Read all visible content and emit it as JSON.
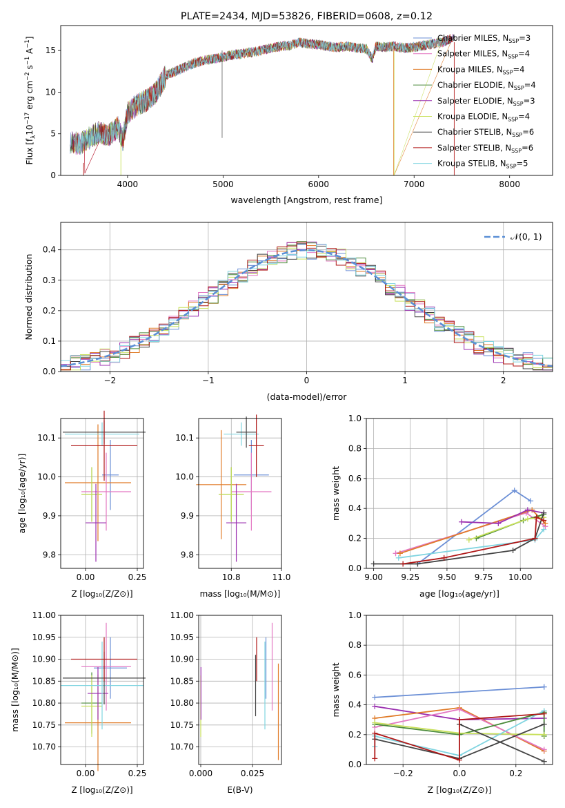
{
  "chart_data": [
    {
      "id": "spectrum",
      "type": "line",
      "title": "PLATE=2434, MJD=53826, FIBERID=0608, z=0.12",
      "xlabel": "wavelength [Angstrom, rest frame]",
      "ylabel_parts": {
        "pre": "Flux [f",
        "sub": "λ",
        "mid": "10",
        "sup1": "−17",
        "mid2": " erg cm",
        "sup2": "−2",
        "mid3": " s",
        "sup3": "−1",
        "mid4": " A",
        "sup4": "−1",
        "post": "]"
      },
      "xlim": [
        3300,
        8450
      ],
      "ylim": [
        0,
        18
      ],
      "xticks": [
        4000,
        5000,
        6000,
        7000,
        8000
      ],
      "yticks": [
        0,
        5,
        10,
        15
      ],
      "legend_position": "upper-right",
      "series": [
        {
          "label": "Chabrier MILES, N",
          "sub": "SSP",
          "suffix": "=3",
          "color": "#6b8fd6"
        },
        {
          "label": "Salpeter MILES, N",
          "sub": "SSP",
          "suffix": "=4",
          "color": "#e377c2"
        },
        {
          "label": "Kroupa MILES, N",
          "sub": "SSP",
          "suffix": "=4",
          "color": "#e07b28"
        },
        {
          "label": "Chabrier ELODIE, N",
          "sub": "SSP",
          "suffix": "=4",
          "color": "#4a8a3a"
        },
        {
          "label": "Salpeter ELODIE, N",
          "sub": "SSP",
          "suffix": "=3",
          "color": "#9b30b0"
        },
        {
          "label": "Kroupa ELODIE, N",
          "sub": "SSP",
          "suffix": "=4",
          "color": "#c8e05a"
        },
        {
          "label": "Chabrier STELIB, N",
          "sub": "SSP",
          "suffix": "=6",
          "color": "#444444"
        },
        {
          "label": "Salpeter STELIB, N",
          "sub": "SSP",
          "suffix": "=6",
          "color": "#b01818"
        },
        {
          "label": "Kroupa STELIB, N",
          "sub": "SSP",
          "suffix": "=5",
          "color": "#7fd4e0"
        }
      ],
      "envelope": [
        [
          3400,
          4.0
        ],
        [
          3500,
          3.8
        ],
        [
          3600,
          4.5
        ],
        [
          3700,
          5.2
        ],
        [
          3800,
          4.8
        ],
        [
          3900,
          5.8
        ],
        [
          3950,
          4.2
        ],
        [
          4000,
          7.5
        ],
        [
          4100,
          8.5
        ],
        [
          4200,
          9.0
        ],
        [
          4300,
          10.0
        ],
        [
          4400,
          12.0
        ],
        [
          4500,
          12.5
        ],
        [
          4600,
          13.0
        ],
        [
          4700,
          13.5
        ],
        [
          4800,
          13.8
        ],
        [
          4900,
          14.0
        ],
        [
          5000,
          14.2
        ],
        [
          5100,
          14.5
        ],
        [
          5200,
          14.6
        ],
        [
          5300,
          14.8
        ],
        [
          5400,
          15.0
        ],
        [
          5500,
          15.3
        ],
        [
          5600,
          15.5
        ],
        [
          5700,
          15.6
        ],
        [
          5800,
          16.0
        ],
        [
          5900,
          15.8
        ],
        [
          6000,
          15.7
        ],
        [
          6100,
          15.5
        ],
        [
          6200,
          15.4
        ],
        [
          6300,
          15.5
        ],
        [
          6400,
          15.3
        ],
        [
          6500,
          15.2
        ],
        [
          6563,
          14.0
        ],
        [
          6600,
          15.5
        ],
        [
          6700,
          15.4
        ],
        [
          6800,
          15.5
        ],
        [
          6900,
          15.3
        ],
        [
          7000,
          15.4
        ],
        [
          7100,
          15.6
        ],
        [
          7200,
          15.8
        ],
        [
          7300,
          16.0
        ],
        [
          7400,
          16.5
        ]
      ]
    },
    {
      "id": "residuals",
      "type": "histogram",
      "xlabel": "(data-model)/error",
      "ylabel": "Normed distribution",
      "xlim": [
        -2.5,
        2.5
      ],
      "ylim": [
        0,
        0.49
      ],
      "xticks": [
        -2,
        -1,
        0,
        1,
        2
      ],
      "yticks": [
        0.0,
        0.1,
        0.2,
        0.3,
        0.4
      ],
      "legend": "𝒩(0, 1)",
      "legend_position": "upper-right",
      "grid": true
    },
    {
      "id": "age_vs_Z",
      "type": "errorbar",
      "xlabel": "Z [log₁₀(Z/Z⊙)]",
      "ylabel": "age  [log₁₀(age/yr)]",
      "xlim": [
        -0.12,
        0.28
      ],
      "ylim": [
        9.765,
        10.15
      ],
      "xticks": [
        "0.00",
        "0.25"
      ],
      "xtick_values": [
        0.0,
        0.25
      ],
      "yticks": [
        "9.8",
        "9.9",
        "10.0",
        "10.1"
      ],
      "ytick_values": [
        9.8,
        9.9,
        10.0,
        10.1
      ],
      "points": [
        {
          "color": "#6b8fd6",
          "x": 0.12,
          "xerr": 0.04,
          "y": 10.005,
          "yerr": 0.09
        },
        {
          "color": "#e07b28",
          "x": 0.06,
          "xerr": 0.16,
          "y": 9.985,
          "yerr": 0.15
        },
        {
          "color": "#e377c2",
          "x": 0.1,
          "xerr": 0.12,
          "y": 9.962,
          "yerr": 0.1
        },
        {
          "color": "#4a8a3a",
          "x": 0.03,
          "xerr": 0.05,
          "y": 9.955,
          "yerr": 0.07
        },
        {
          "color": "#c8e05a",
          "x": 0.03,
          "xerr": 0.05,
          "y": 9.955,
          "yerr": 0.07
        },
        {
          "color": "#9b30b0",
          "x": 0.05,
          "xerr": 0.05,
          "y": 9.882,
          "yerr": 0.1
        },
        {
          "color": "#7fd4e0",
          "x": 0.08,
          "xerr": 0.18,
          "y": 10.11,
          "yerr": 0.03
        },
        {
          "color": "#444444",
          "x": 0.09,
          "xerr": 0.2,
          "y": 10.115,
          "yerr": 0.03
        },
        {
          "color": "#b01818",
          "x": 0.09,
          "xerr": 0.16,
          "y": 10.08,
          "yerr": 0.09
        }
      ]
    },
    {
      "id": "age_vs_mass",
      "type": "errorbar",
      "xlabel": "mass [log₁₀(M/M⊙)]",
      "ylabel": "",
      "xlim": [
        10.67,
        11.0
      ],
      "ylim": [
        9.765,
        10.15
      ],
      "xticks": [
        "10.8",
        "11.0"
      ],
      "xtick_values": [
        10.8,
        11.0
      ],
      "yticks": [
        "9.8",
        "9.9",
        "10.0",
        "10.1"
      ],
      "ytick_values": [
        9.8,
        9.9,
        10.0,
        10.1
      ],
      "points": [
        {
          "color": "#6b8fd6",
          "x": 10.88,
          "xerr": 0.07,
          "y": 10.005,
          "yerr": 0.09
        },
        {
          "color": "#e07b28",
          "x": 10.76,
          "xerr": 0.1,
          "y": 9.98,
          "yerr": 0.14
        },
        {
          "color": "#e377c2",
          "x": 10.88,
          "xerr": 0.08,
          "y": 9.962,
          "yerr": 0.1
        },
        {
          "color": "#4a8a3a",
          "x": 10.8,
          "xerr": 0.05,
          "y": 9.955,
          "yerr": 0.07
        },
        {
          "color": "#c8e05a",
          "x": 10.8,
          "xerr": 0.05,
          "y": 9.955,
          "yerr": 0.07
        },
        {
          "color": "#9b30b0",
          "x": 10.82,
          "xerr": 0.04,
          "y": 9.882,
          "yerr": 0.1
        },
        {
          "color": "#7fd4e0",
          "x": 10.84,
          "xerr": 0.07,
          "y": 10.11,
          "yerr": 0.03
        },
        {
          "color": "#444444",
          "x": 10.86,
          "xerr": 0.04,
          "y": 10.115,
          "yerr": 0.04
        },
        {
          "color": "#b01818",
          "x": 10.9,
          "xerr": 0.03,
          "y": 10.08,
          "yerr": 0.08
        }
      ]
    },
    {
      "id": "mw_vs_age",
      "type": "line",
      "xlabel": "age  [log₁₀(age/yr)]",
      "ylabel": "mass weight",
      "xlim": [
        8.95,
        10.22
      ],
      "ylim": [
        0,
        1.0
      ],
      "xticks": [
        "9.00",
        "9.25",
        "9.50",
        "9.75",
        "10.00"
      ],
      "xtick_values": [
        9.0,
        9.25,
        9.5,
        9.75,
        10.0
      ],
      "yticks": [
        "0.0",
        "0.2",
        "0.4",
        "0.6",
        "0.8",
        "1.0"
      ],
      "ytick_values": [
        0.0,
        0.2,
        0.4,
        0.6,
        0.8,
        1.0
      ],
      "grid": true,
      "series": [
        {
          "color": "#6b8fd6",
          "x": [
            9.3,
            9.96,
            10.07
          ],
          "y": [
            0.03,
            0.52,
            0.45
          ]
        },
        {
          "color": "#e377c2",
          "x": [
            9.15,
            10.04,
            10.17
          ],
          "y": [
            0.1,
            0.37,
            0.28
          ]
        },
        {
          "color": "#e07b28",
          "x": [
            9.18,
            10.08,
            10.17
          ],
          "y": [
            0.1,
            0.39,
            0.3
          ]
        },
        {
          "color": "#4a8a3a",
          "x": [
            9.7,
            10.02,
            10.16
          ],
          "y": [
            0.2,
            0.32,
            0.36
          ]
        },
        {
          "color": "#c8e05a",
          "x": [
            9.65,
            10.05,
            10.16
          ],
          "y": [
            0.19,
            0.33,
            0.34
          ]
        },
        {
          "color": "#9b30b0",
          "x": [
            9.6,
            9.85,
            10.05,
            10.16
          ],
          "y": [
            0.31,
            0.3,
            0.39,
            0.37
          ]
        },
        {
          "color": "#7fd4e0",
          "x": [
            9.17,
            10.1,
            10.16
          ],
          "y": [
            0.07,
            0.19,
            0.26
          ]
        },
        {
          "color": "#444444",
          "x": [
            9.0,
            9.3,
            9.95,
            10.1,
            10.16
          ],
          "y": [
            0.03,
            0.03,
            0.12,
            0.2,
            0.37
          ]
        },
        {
          "color": "#b01818",
          "x": [
            9.2,
            9.48,
            10.1,
            10.11,
            10.16
          ],
          "y": [
            0.03,
            0.07,
            0.2,
            0.34,
            0.32
          ]
        }
      ]
    },
    {
      "id": "mass_vs_Z",
      "type": "errorbar",
      "xlabel": "Z [log₁₀(Z/Z⊙)]",
      "ylabel": "mass [log₁₀(M/M⊙)]",
      "xlim": [
        -0.12,
        0.28
      ],
      "ylim": [
        10.66,
        11.0
      ],
      "xticks": [
        "0.00",
        "0.25"
      ],
      "xtick_values": [
        0.0,
        0.25
      ],
      "yticks": [
        "10.70",
        "10.75",
        "10.80",
        "10.85",
        "10.90",
        "10.95",
        "11.00"
      ],
      "ytick_values": [
        10.7,
        10.75,
        10.8,
        10.85,
        10.9,
        10.95,
        11.0
      ],
      "points": [
        {
          "color": "#6b8fd6",
          "x": 0.12,
          "xerr": 0.08,
          "y": 10.88,
          "yerr": 0.07
        },
        {
          "color": "#e377c2",
          "x": 0.1,
          "xerr": 0.12,
          "y": 10.883,
          "yerr": 0.1
        },
        {
          "color": "#e07b28",
          "x": 0.06,
          "xerr": 0.16,
          "y": 10.755,
          "yerr": 0.11
        },
        {
          "color": "#4a8a3a",
          "x": 0.03,
          "xerr": 0.05,
          "y": 10.8,
          "yerr": 0.07
        },
        {
          "color": "#c8e05a",
          "x": 0.03,
          "xerr": 0.05,
          "y": 10.793,
          "yerr": 0.07
        },
        {
          "color": "#9b30b0",
          "x": 0.06,
          "xerr": 0.05,
          "y": 10.822,
          "yerr": 0.06
        },
        {
          "color": "#7fd4e0",
          "x": 0.08,
          "xerr": 0.2,
          "y": 10.84,
          "yerr": 0.1
        },
        {
          "color": "#444444",
          "x": 0.09,
          "xerr": 0.2,
          "y": 10.857,
          "yerr": 0.06
        },
        {
          "color": "#b01818",
          "x": 0.09,
          "xerr": 0.16,
          "y": 10.9,
          "yerr": 0.05
        }
      ]
    },
    {
      "id": "mass_vs_ebv",
      "type": "errorbar",
      "xlabel": "E(B-V)",
      "ylabel": "",
      "xlim": [
        -0.001,
        0.039
      ],
      "ylim": [
        10.66,
        11.0
      ],
      "xticks": [
        "0.000",
        "0.025"
      ],
      "xtick_values": [
        0.0,
        0.025
      ],
      "yticks": [
        "10.70",
        "10.75",
        "10.80",
        "10.85",
        "10.90",
        "10.95",
        "11.00"
      ],
      "ytick_values": [
        10.7,
        10.75,
        10.8,
        10.85,
        10.9,
        10.95,
        11.0
      ],
      "points": [
        {
          "color": "#c8e05a",
          "x": 0.0,
          "xerr": 0,
          "y": 10.793,
          "yerr": 0.07
        },
        {
          "color": "#9b30b0",
          "x": 0.0001,
          "xerr": 0,
          "y": 10.822,
          "yerr": 0.06
        },
        {
          "color": "#444444",
          "x": 0.0265,
          "xerr": 0,
          "y": 10.84,
          "yerr": 0.07
        },
        {
          "color": "#b01818",
          "x": 0.027,
          "xerr": 0,
          "y": 10.9,
          "yerr": 0.05
        },
        {
          "color": "#7fd4e0",
          "x": 0.031,
          "xerr": 0,
          "y": 10.84,
          "yerr": 0.1
        },
        {
          "color": "#6b8fd6",
          "x": 0.0315,
          "xerr": 0,
          "y": 10.88,
          "yerr": 0.07
        },
        {
          "color": "#e377c2",
          "x": 0.0345,
          "xerr": 0,
          "y": 10.883,
          "yerr": 0.1
        },
        {
          "color": "#e07b28",
          "x": 0.0375,
          "xerr": 0,
          "y": 10.78,
          "yerr": 0.11
        }
      ]
    },
    {
      "id": "mw_vs_Z",
      "type": "line",
      "xlabel": "Z [log₁₀(Z/Z⊙)]",
      "ylabel": "mass weight",
      "xlim": [
        -0.33,
        0.33
      ],
      "ylim": [
        0,
        1.0
      ],
      "xticks": [
        "−0.2",
        "0.0",
        "0.2"
      ],
      "xtick_values": [
        -0.2,
        0.0,
        0.2
      ],
      "yticks": [
        "0.0",
        "0.2",
        "0.4",
        "0.6",
        "0.8",
        "1.0"
      ],
      "ytick_values": [
        0.0,
        0.2,
        0.4,
        0.6,
        0.8,
        1.0
      ],
      "grid": true,
      "series": [
        {
          "color": "#6b8fd6",
          "x": [
            -0.3,
            0.3
          ],
          "y": [
            0.45,
            0.52
          ]
        },
        {
          "color": "#9b30b0",
          "x": [
            -0.3,
            0.0,
            0.3
          ],
          "y": [
            0.39,
            0.3,
            0.31
          ]
        },
        {
          "color": "#e07b28",
          "x": [
            -0.3,
            0.0,
            0.3
          ],
          "y": [
            0.31,
            0.38,
            0.09
          ]
        },
        {
          "color": "#e377c2",
          "x": [
            -0.3,
            0.0,
            0.3
          ],
          "y": [
            0.25,
            0.37,
            0.1
          ]
        },
        {
          "color": "#4a8a3a",
          "x": [
            -0.3,
            0.0,
            0.3,
            0.3
          ],
          "y": [
            0.27,
            0.2,
            0.35,
            0.19
          ]
        },
        {
          "color": "#c8e05a",
          "x": [
            -0.3,
            0.0,
            0.3
          ],
          "y": [
            0.28,
            0.21,
            0.2
          ]
        },
        {
          "color": "#7fd4e0",
          "x": [
            -0.3,
            -0.3,
            0.0,
            0.3
          ],
          "y": [
            0.12,
            0.19,
            0.06,
            0.36
          ]
        },
        {
          "color": "#444444",
          "x": [
            -0.3,
            0.0,
            0.3
          ],
          "y": [
            0.17,
            0.04,
            0.27
          ]
        },
        {
          "color": "#444444",
          "x": [
            0.0,
            0.3
          ],
          "y": [
            0.27,
            0.02
          ]
        },
        {
          "color": "#b01818",
          "x": [
            -0.3,
            -0.3,
            0.0,
            0.0,
            0.3
          ],
          "y": [
            0.04,
            0.21,
            0.03,
            0.3,
            0.34
          ]
        }
      ]
    }
  ]
}
